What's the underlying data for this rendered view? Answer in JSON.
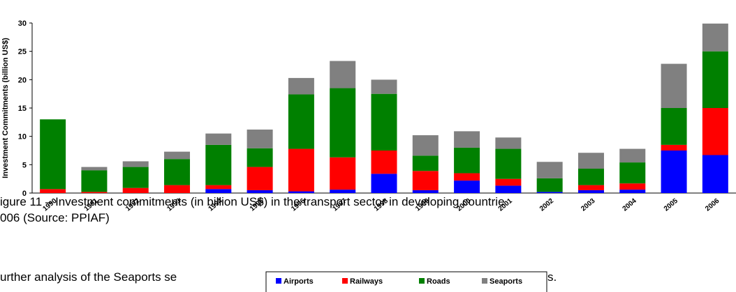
{
  "document": {
    "lines": [
      "igure 11 – Investment commitments (in billion US$) in the transport sector in developing countrie",
      "006 (Source: PPIAF)",
      "urther analysis of the Seaports se",
      "s."
    ]
  },
  "chart_data": {
    "type": "stacked_bar",
    "y_label": "Investment Commitments (billion US$)",
    "categories": [
      "1990",
      "1991",
      "1992",
      "1993",
      "1994",
      "1995",
      "1996",
      "1997",
      "1998",
      "1999",
      "2000",
      "2001",
      "2002",
      "2003",
      "2004",
      "2005",
      "2006"
    ],
    "series": [
      {
        "name": "Airports",
        "color": "#0000ff",
        "values": [
          0,
          0,
          0,
          0,
          0.7,
          0.5,
          0.3,
          0.6,
          3.4,
          0.5,
          2.2,
          1.3,
          0.2,
          0.5,
          0.6,
          7.5,
          6.7
        ]
      },
      {
        "name": "Railways",
        "color": "#ff0000",
        "values": [
          0.7,
          0.2,
          0.9,
          1.4,
          0.7,
          4.1,
          7.5,
          5.7,
          4.1,
          3.4,
          1.3,
          1.2,
          0,
          0.9,
          1.1,
          1.0,
          8.3
        ]
      },
      {
        "name": "Roads",
        "color": "#008000",
        "values": [
          12.3,
          3.8,
          3.7,
          4.6,
          7.1,
          3.3,
          9.6,
          12.2,
          10.0,
          2.7,
          4.5,
          5.3,
          2.4,
          2.9,
          3.7,
          6.5,
          10.0
        ]
      },
      {
        "name": "Seaports",
        "color": "#808080",
        "values": [
          0,
          0.6,
          1.0,
          1.3,
          2.0,
          3.3,
          2.9,
          4.8,
          2.5,
          3.6,
          2.9,
          2.0,
          2.9,
          2.8,
          2.4,
          7.8,
          4.9
        ]
      }
    ],
    "ylim": [
      0,
      30
    ],
    "yticks": [
      0,
      5,
      10,
      15,
      20,
      25,
      30
    ],
    "grid": false,
    "legend": "bottom"
  }
}
